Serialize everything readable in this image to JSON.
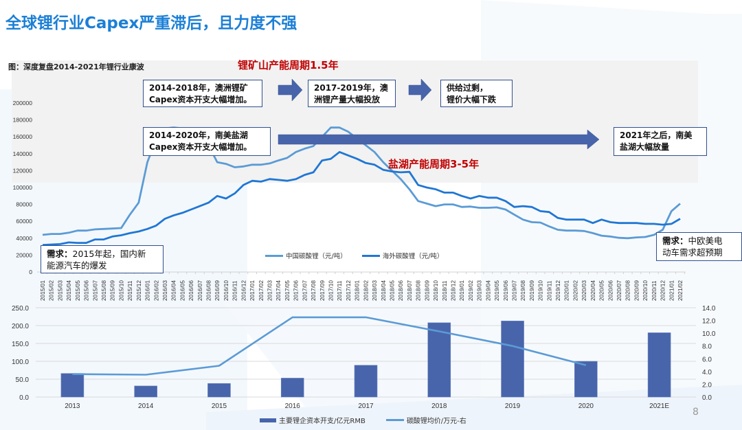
{
  "slide": {
    "title": "全球锂行业Capex严重滞后，且力度不强",
    "figure_caption": "图：深度复盘2014-2021年锂行业康波",
    "page_number": "8",
    "colors": {
      "title_blue": "#1b7fd6",
      "annotation_red": "#c00000",
      "china_line": "#5b9bd5",
      "overseas_line": "#1f77d4",
      "bar_fill": "#4865ab",
      "arrow_fill": "#4865ab"
    }
  },
  "annotations": {
    "mine_cycle": "锂矿山产能周期1.5年",
    "brine_cycle": "盐湖产能周期3-5年",
    "box_australia_capex": [
      "2014-2018年，澳洲锂矿",
      "Capex资本开支大幅增加。"
    ],
    "box_australia_output": [
      "2017-2019年，澳",
      "洲锂产量大幅投放"
    ],
    "box_oversupply": [
      "供给过剩，",
      "锂价大幅下跌"
    ],
    "box_sa_capex": [
      "2014-2020年，南美盐湖",
      "Capex资本开支大幅增加。"
    ],
    "box_sa_after2021": [
      "2021年之后，南美",
      "盐湖大幅放量"
    ],
    "box_demand_2015": {
      "bold": "需求：",
      "text1": "2015年起，国内新",
      "text2": "能源汽车的爆发"
    },
    "box_demand_eu_us": {
      "bold": "需求：",
      "text1": "中欧美电",
      "text2": "动车需求超预期"
    }
  },
  "chart_data": [
    {
      "type": "line",
      "title": "",
      "xlabel": "",
      "ylabel": "",
      "ylim": [
        0,
        200000
      ],
      "yticks": [
        "0",
        "20000",
        "40000",
        "60000",
        "80000",
        "100000",
        "120000",
        "140000",
        "160000",
        "180000",
        "200000"
      ],
      "legend_position": "bottom-center",
      "grid": false,
      "x": [
        "2015/01",
        "2015/02",
        "2015/03",
        "2015/04",
        "2015/05",
        "2015/06",
        "2015/07",
        "2015/08",
        "2015/09",
        "2015/10",
        "2015/11",
        "2015/12",
        "2016/01",
        "2016/02",
        "2016/03",
        "2016/04",
        "2016/05",
        "2016/06",
        "2016/07",
        "2016/08",
        "2016/09",
        "2016/10",
        "2016/11",
        "2016/12",
        "2017/01",
        "2017/02",
        "2017/03",
        "2017/04",
        "2017/05",
        "2017/06",
        "2017/07",
        "2017/08",
        "2017/09",
        "2017/10",
        "2017/11",
        "2017/12",
        "2018/01",
        "2018/02",
        "2018/03",
        "2018/04",
        "2018/05",
        "2018/06",
        "2018/07",
        "2018/08",
        "2018/09",
        "2018/10",
        "2018/11",
        "2018/12",
        "2019/01",
        "2019/02",
        "2019/03",
        "2019/04",
        "2019/05",
        "2019/06",
        "2019/07",
        "2019/08",
        "2019/09",
        "2019/10",
        "2019/11",
        "2019/12",
        "2020/01",
        "2020/02",
        "2020/03",
        "2020/04",
        "2020/05",
        "2020/06",
        "2020/07",
        "2020/08",
        "2020/09",
        "2020/10",
        "2020/11",
        "2020/12",
        "2021/01",
        "2021/02"
      ],
      "series": [
        {
          "name": "中国碳酸锂（元/吨）",
          "values": [
            44000,
            45000,
            45000,
            46500,
            49000,
            49000,
            50500,
            51000,
            51500,
            52000,
            68000,
            82000,
            130000,
            157000,
            170000,
            171000,
            170000,
            168000,
            160000,
            150000,
            130000,
            128000,
            124000,
            125000,
            127000,
            127000,
            128500,
            132000,
            135000,
            142000,
            146000,
            149000,
            160000,
            171000,
            171000,
            166000,
            158000,
            150000,
            142000,
            130000,
            120000,
            110000,
            98000,
            84000,
            81000,
            78000,
            80000,
            80000,
            77000,
            77500,
            76000,
            76000,
            76500,
            74000,
            68000,
            62000,
            59000,
            58500,
            54000,
            50000,
            49000,
            49000,
            48500,
            46000,
            43000,
            42000,
            40500,
            40000,
            41000,
            41500,
            44000,
            50000,
            72000,
            81000
          ]
        },
        {
          "name": "海外碳酸锂（元/吨）",
          "values": [
            32000,
            32500,
            33000,
            35000,
            34500,
            34500,
            38500,
            38500,
            42000,
            43500,
            46000,
            48000,
            51000,
            55000,
            63000,
            67000,
            70000,
            74000,
            78000,
            82000,
            90000,
            87000,
            93000,
            103000,
            108000,
            107000,
            110000,
            109000,
            108000,
            110000,
            115000,
            118000,
            132000,
            134000,
            142000,
            138000,
            134000,
            129000,
            127000,
            121000,
            119000,
            118000,
            118500,
            103000,
            100000,
            98000,
            94000,
            94000,
            90000,
            87000,
            90000,
            88000,
            88000,
            84000,
            77000,
            78000,
            77000,
            72000,
            71000,
            64000,
            62000,
            62000,
            62000,
            58000,
            62000,
            59000,
            58000,
            58000,
            58000,
            57000,
            57000,
            56000,
            57000,
            63000
          ]
        }
      ]
    },
    {
      "type": "bar",
      "title": "",
      "xlabel": "",
      "categories": [
        "2013",
        "2014",
        "2015",
        "2016",
        "2017",
        "2018",
        "2019",
        "2020",
        "2021E"
      ],
      "ylim": [
        0,
        250
      ],
      "y2lim": [
        0,
        14
      ],
      "yticks": [
        "0.0",
        "50.0",
        "100.0",
        "150.0",
        "200.0",
        "250.0"
      ],
      "y2ticks": [
        "0.0",
        "2.0",
        "4.0",
        "6.0",
        "8.0",
        "10.0",
        "12.0",
        "14.0"
      ],
      "legend_position": "bottom-center",
      "grid": true,
      "series": [
        {
          "name": "主要锂企资本开支/亿元RMB",
          "type": "bar",
          "axis": "left",
          "values": [
            66,
            31,
            38,
            53,
            89,
            208,
            213,
            100,
            180
          ]
        },
        {
          "name": "碳酸锂均价/万元-右",
          "type": "line",
          "axis": "right",
          "values": [
            3.6,
            3.5,
            4.9,
            12.5,
            12.5,
            10.3,
            8.0,
            5.0,
            null
          ]
        }
      ]
    }
  ]
}
